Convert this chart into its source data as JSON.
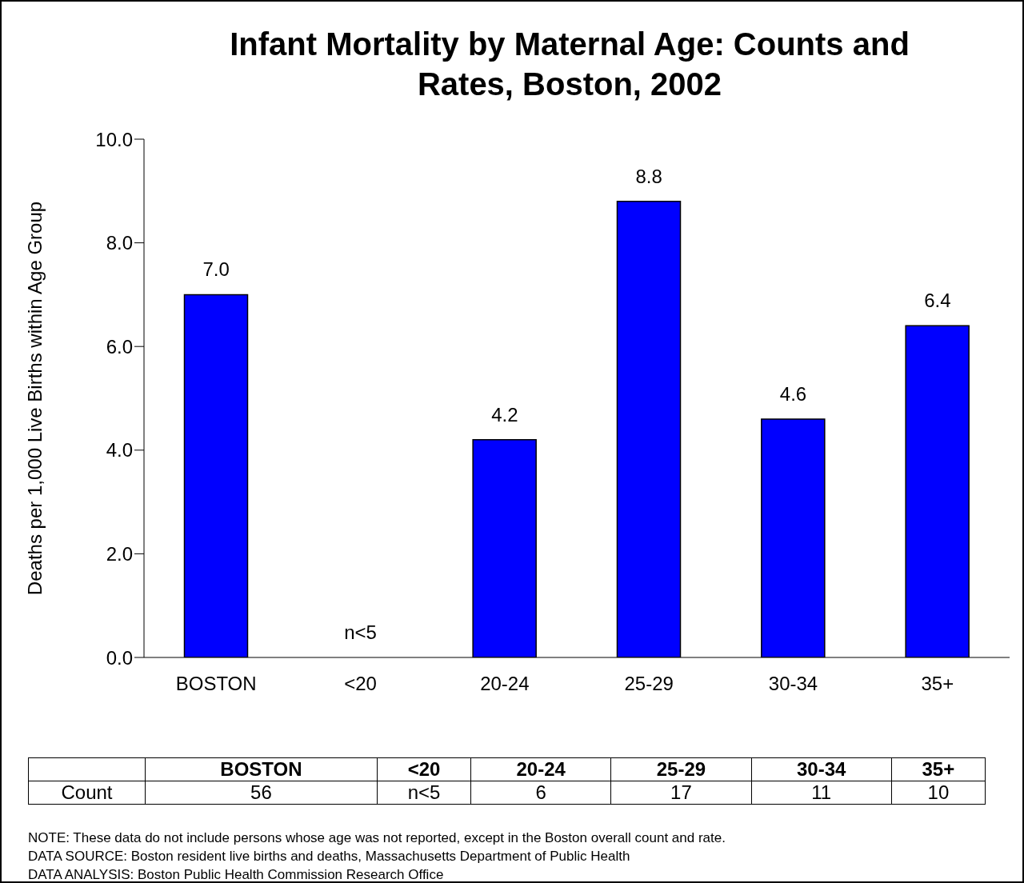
{
  "chart_data": [
    {
      "type": "bar",
      "title": "Infant Mortality by Maternal Age: Counts and Rates, Boston, 2002",
      "ylabel": "Deaths per 1,000 Live Births within Age Group",
      "categories": [
        "BOSTON",
        "<20",
        "20-24",
        "25-29",
        "30-34",
        "35+"
      ],
      "values": [
        7.0,
        null,
        4.2,
        8.8,
        4.6,
        6.4
      ],
      "value_labels": [
        "7.0",
        "n<5",
        "4.2",
        "8.8",
        "4.6",
        "6.4"
      ],
      "color": "#0000ff",
      "ylim": [
        0,
        10
      ],
      "yticks": [
        {
          "value": 0,
          "label": "0.0"
        },
        {
          "value": 2,
          "label": "2.0"
        },
        {
          "value": 4,
          "label": "4.0"
        },
        {
          "value": 6,
          "label": "6.0"
        },
        {
          "value": 8,
          "label": "8.0"
        },
        {
          "value": 10,
          "label": "10.0"
        }
      ],
      "annotations": [
        "NOTE:  These data do not include persons whose age was not reported, except in the Boston overall count and rate.",
        "DATA SOURCE:  Boston resident live births and deaths, Massachusetts Department of Public Health",
        "DATA ANALYSIS:  Boston Public Health Commission Research Office"
      ]
    },
    {
      "type": "other",
      "data_labels": true,
      "categories": [
        "BOSTON",
        "<20",
        "20-24",
        "25-29",
        "30-34",
        "35+"
      ],
      "ylabel": "Count",
      "value_labels": [
        "56",
        "n<5",
        "6",
        "17",
        "11",
        "10"
      ]
    }
  ]
}
